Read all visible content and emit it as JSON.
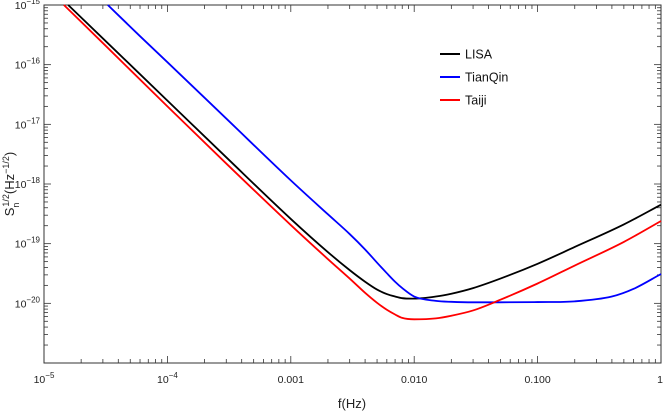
{
  "chart_data": {
    "type": "line",
    "xlabel": "f(Hz)",
    "ylabel": "S_n^(1/2)(Hz^(-1/2))",
    "ylabel_parts": {
      "base": "S",
      "sub": "n",
      "sup1": "1/2",
      "paren_open": "(Hz",
      "sup2": "−1/2",
      "paren_close": ")"
    },
    "x_scale": "log",
    "y_scale": "log",
    "xlim": [
      1e-05,
      1
    ],
    "ylim": [
      1e-21,
      1e-15
    ],
    "grid": false,
    "legend_position": "top-right",
    "x_ticks": [
      {
        "value": 1e-05,
        "base": "10",
        "exp": "−5"
      },
      {
        "value": 0.0001,
        "base": "10",
        "exp": "−4"
      },
      {
        "value": 0.001,
        "label": "0.001"
      },
      {
        "value": 0.01,
        "label": "0.010"
      },
      {
        "value": 0.1,
        "label": "0.100"
      },
      {
        "value": 1,
        "label": "1"
      }
    ],
    "y_ticks": [
      {
        "value": 1e-20,
        "base": "10",
        "exp": "−20"
      },
      {
        "value": 1e-19,
        "base": "10",
        "exp": "−19"
      },
      {
        "value": 1e-18,
        "base": "10",
        "exp": "−18"
      },
      {
        "value": 1e-17,
        "base": "10",
        "exp": "−17"
      },
      {
        "value": 1e-16,
        "base": "10",
        "exp": "−16"
      },
      {
        "value": 1e-15,
        "base": "10",
        "exp": "−15"
      }
    ],
    "series": [
      {
        "name": "LISA",
        "color": "#000000",
        "x": [
          1.57e-05,
          3e-05,
          0.0001,
          0.0003,
          0.001,
          0.002,
          0.003,
          0.004,
          0.005,
          0.006,
          0.007,
          0.008,
          0.01,
          0.015,
          0.02,
          0.03,
          0.05,
          0.1,
          0.2,
          0.5,
          1
        ],
        "y": [
          1e-15,
          2.75e-16,
          2.5e-17,
          2.8e-18,
          2.6e-19,
          7.2e-20,
          3.6e-20,
          2.3e-20,
          1.7e-20,
          1.43e-20,
          1.3e-20,
          1.22e-20,
          1.2e-20,
          1.3e-20,
          1.45e-20,
          1.8e-20,
          2.6e-20,
          4.6e-20,
          8.8e-20,
          2.1e-19,
          4.5e-19
        ]
      },
      {
        "name": "TianQin",
        "color": "#0000ff",
        "x": [
          3.29e-05,
          6e-05,
          0.0001,
          0.0003,
          0.001,
          0.002,
          0.003,
          0.004,
          0.005,
          0.006,
          0.007,
          0.008,
          0.01,
          0.015,
          0.02,
          0.03,
          0.05,
          0.1,
          0.2,
          0.4,
          0.6,
          1
        ],
        "y": [
          1e-15,
          3e-16,
          1.1e-16,
          1.25e-17,
          1.15e-18,
          3.1e-19,
          1.45e-19,
          8e-20,
          4.8e-20,
          3.2e-20,
          2.3e-20,
          1.8e-20,
          1.3e-20,
          1.1e-20,
          1.06e-20,
          1.04e-20,
          1.04e-20,
          1.05e-20,
          1.08e-20,
          1.3e-20,
          1.75e-20,
          3.1e-20
        ]
      },
      {
        "name": "Taiji",
        "color": "#ff0000",
        "x": [
          1.45e-05,
          3e-05,
          0.0001,
          0.0003,
          0.001,
          0.002,
          0.003,
          0.004,
          0.005,
          0.006,
          0.007,
          0.008,
          0.01,
          0.015,
          0.02,
          0.03,
          0.05,
          0.1,
          0.2,
          0.5,
          1
        ],
        "y": [
          1e-15,
          2.3e-16,
          2e-17,
          2.2e-18,
          2.05e-19,
          5.5e-20,
          2.6e-20,
          1.5e-20,
          1.02e-20,
          7.8e-21,
          6.5e-21,
          5.7e-21,
          5.4e-21,
          5.6e-21,
          6.2e-21,
          7.6e-21,
          1.15e-20,
          2.15e-20,
          4.3e-20,
          1.07e-19,
          2.4e-19
        ]
      }
    ]
  }
}
